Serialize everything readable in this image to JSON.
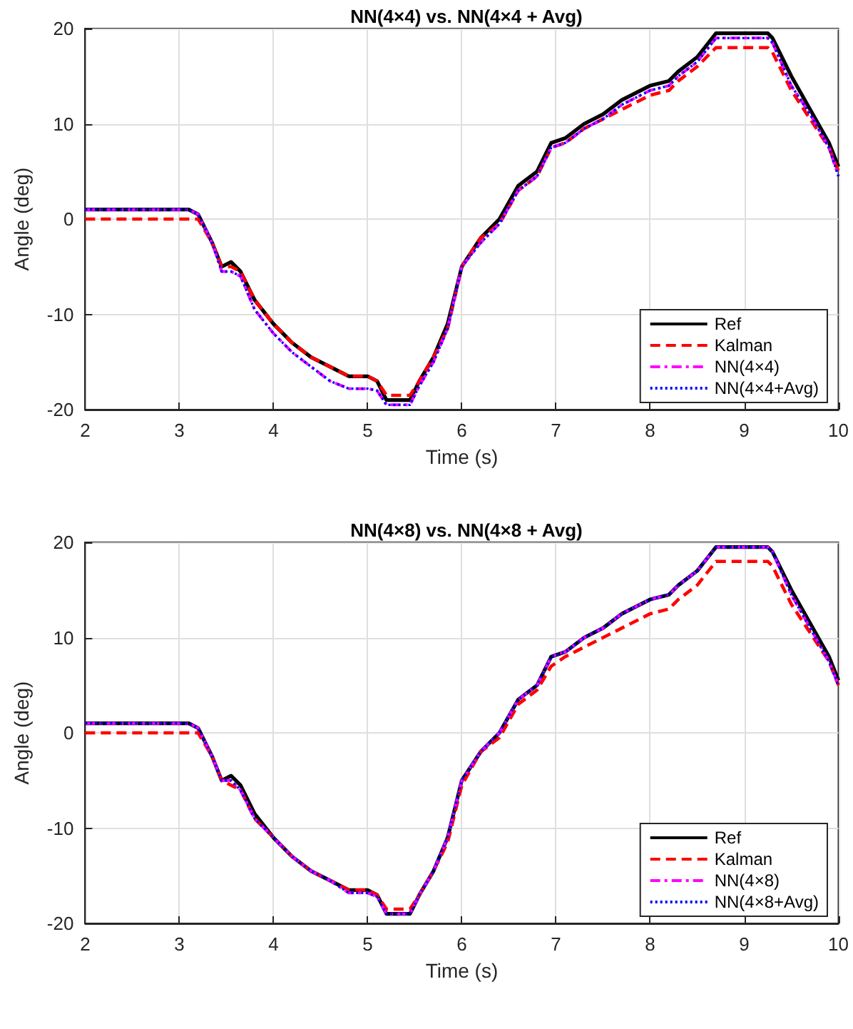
{
  "chart_data": [
    {
      "type": "line",
      "title": "NN(4×4) vs. NN(4×4 + Avg)",
      "xlabel": "Time (s)",
      "ylabel": "Angle (deg)",
      "x": [
        2,
        3.1,
        3.2,
        3.35,
        3.45,
        3.55,
        3.65,
        3.8,
        4,
        4.2,
        4.4,
        4.6,
        4.8,
        5,
        5.1,
        5.2,
        5.45,
        5.55,
        5.7,
        5.85,
        6,
        6.2,
        6.4,
        6.6,
        6.8,
        6.95,
        7.1,
        7.3,
        7.5,
        7.7,
        8,
        8.2,
        8.3,
        8.5,
        8.7,
        9,
        9.25,
        9.3,
        9.5,
        9.7,
        9.9,
        10
      ],
      "series": [
        {
          "name": "Ref",
          "color": "#000000",
          "line_style": "solid",
          "values": [
            1,
            1,
            0.5,
            -2.5,
            -5,
            -4.5,
            -5.5,
            -8.5,
            -11,
            -13,
            -14.5,
            -15.5,
            -16.5,
            -16.5,
            -17,
            -19,
            -19,
            -17,
            -14.5,
            -11,
            -5,
            -2,
            0,
            3.5,
            5,
            8,
            8.5,
            10,
            11,
            12.5,
            14,
            14.5,
            15.5,
            17,
            19.5,
            19.5,
            19.5,
            19,
            15,
            11.5,
            8,
            5.5
          ]
        },
        {
          "name": "Kalman",
          "color": "#ff0000",
          "line_style": "dashed",
          "values": [
            0,
            0,
            0,
            -2.5,
            -5,
            -5,
            -5.5,
            -8.5,
            -11,
            -13,
            -14.5,
            -15.5,
            -16.5,
            -16.5,
            -17,
            -18.5,
            -18.5,
            -17,
            -14.5,
            -11.5,
            -5,
            -2,
            -0.5,
            3,
            4.5,
            7.5,
            8,
            9.5,
            10.5,
            11.5,
            13,
            13.5,
            14.5,
            16,
            18,
            18,
            18,
            17.5,
            13.5,
            10.5,
            7.5,
            5
          ]
        },
        {
          "name": "NN(4×4)",
          "color": "#ff00ff",
          "line_style": "dashdot",
          "values": [
            1,
            1,
            0.5,
            -2.5,
            -5.5,
            -5.5,
            -6,
            -9.5,
            -12,
            -14,
            -15.5,
            -17,
            -17.8,
            -17.8,
            -18,
            -19.5,
            -19.5,
            -17.5,
            -15,
            -11.5,
            -5,
            -2.5,
            -0.5,
            3,
            4.5,
            7.5,
            8,
            9.5,
            10.5,
            12,
            13.5,
            14,
            15,
            16.5,
            19,
            19,
            19,
            18.5,
            14,
            11,
            7.5,
            4.5
          ]
        },
        {
          "name": "NN(4×4+Avg)",
          "color": "#0000ff",
          "line_style": "dotted",
          "values": [
            1,
            1,
            0.5,
            -2.5,
            -5.5,
            -5.5,
            -6,
            -9.5,
            -12,
            -14,
            -15.5,
            -17,
            -17.8,
            -17.8,
            -18,
            -19.5,
            -19.5,
            -17.5,
            -15,
            -11.5,
            -5,
            -2.5,
            -0.5,
            3,
            4.5,
            7.5,
            8,
            9.5,
            10.5,
            12,
            13.5,
            14,
            15,
            16.5,
            19,
            19,
            19,
            18.5,
            14,
            11,
            7.5,
            4.5
          ]
        }
      ],
      "xlim": [
        2,
        10
      ],
      "xticks": [
        2,
        3,
        4,
        5,
        6,
        7,
        8,
        9,
        10
      ],
      "ylim": [
        -20,
        20
      ],
      "yticks": [
        -20,
        -10,
        0,
        10,
        20
      ],
      "grid": true,
      "legend": "bottom right"
    },
    {
      "type": "line",
      "title": "NN(4×8) vs. NN(4×8 + Avg)",
      "xlabel": "Time (s)",
      "ylabel": "Angle (deg)",
      "x": [
        2,
        3.1,
        3.2,
        3.35,
        3.45,
        3.55,
        3.65,
        3.8,
        4,
        4.2,
        4.4,
        4.6,
        4.8,
        5,
        5.1,
        5.2,
        5.45,
        5.55,
        5.7,
        5.85,
        6,
        6.2,
        6.4,
        6.6,
        6.8,
        6.95,
        7.1,
        7.3,
        7.5,
        7.7,
        8,
        8.2,
        8.3,
        8.5,
        8.7,
        9,
        9.25,
        9.3,
        9.5,
        9.7,
        9.9,
        10
      ],
      "series": [
        {
          "name": "Ref",
          "color": "#000000",
          "line_style": "solid",
          "values": [
            1,
            1,
            0.5,
            -2.5,
            -5,
            -4.5,
            -5.5,
            -8.5,
            -11,
            -13,
            -14.5,
            -15.5,
            -16.5,
            -16.5,
            -17,
            -19,
            -19,
            -17,
            -14.5,
            -11,
            -5,
            -2,
            0,
            3.5,
            5,
            8,
            8.5,
            10,
            11,
            12.5,
            14,
            14.5,
            15.5,
            17,
            19.5,
            19.5,
            19.5,
            19,
            15,
            11.5,
            8,
            5.5
          ]
        },
        {
          "name": "Kalman",
          "color": "#ff0000",
          "line_style": "dashed",
          "values": [
            0,
            0,
            0,
            -2.5,
            -5,
            -5.5,
            -6,
            -9,
            -11,
            -13,
            -14.5,
            -15.5,
            -16.5,
            -16.5,
            -17,
            -18.5,
            -18.5,
            -17,
            -14.5,
            -11.5,
            -5.5,
            -2,
            -0.5,
            3,
            4.5,
            7,
            8,
            9,
            10,
            11,
            12.5,
            13,
            14,
            15.5,
            18,
            18,
            18,
            17.5,
            13.5,
            10.5,
            7.5,
            5
          ]
        },
        {
          "name": "NN(4×8)",
          "color": "#ff00ff",
          "line_style": "dashdot",
          "values": [
            1,
            1,
            0.5,
            -2.5,
            -5,
            -5,
            -6,
            -9,
            -11,
            -13,
            -14.5,
            -15.5,
            -16.8,
            -16.8,
            -17.2,
            -19,
            -19,
            -17,
            -14.5,
            -11,
            -5,
            -2,
            0,
            3.5,
            5,
            8,
            8.5,
            10,
            11,
            12.5,
            14,
            14.5,
            15.5,
            17,
            19.5,
            19.5,
            19.5,
            19,
            14.5,
            11,
            7.5,
            5
          ]
        },
        {
          "name": "NN(4×8+Avg)",
          "color": "#0000ff",
          "line_style": "dotted",
          "values": [
            1,
            1,
            0.5,
            -2.5,
            -5,
            -5,
            -6,
            -9,
            -11,
            -13,
            -14.5,
            -15.5,
            -16.8,
            -16.8,
            -17.2,
            -19,
            -19,
            -17,
            -14.5,
            -11,
            -5,
            -2,
            0,
            3.5,
            5,
            8,
            8.5,
            10,
            11,
            12.5,
            14,
            14.5,
            15.5,
            17,
            19.5,
            19.5,
            19.5,
            19,
            14.5,
            11,
            7.5,
            5
          ]
        }
      ],
      "xlim": [
        2,
        10
      ],
      "xticks": [
        2,
        3,
        4,
        5,
        6,
        7,
        8,
        9,
        10
      ],
      "ylim": [
        -20,
        20
      ],
      "yticks": [
        -20,
        -10,
        0,
        10,
        20
      ],
      "grid": true,
      "legend": "bottom right"
    }
  ]
}
